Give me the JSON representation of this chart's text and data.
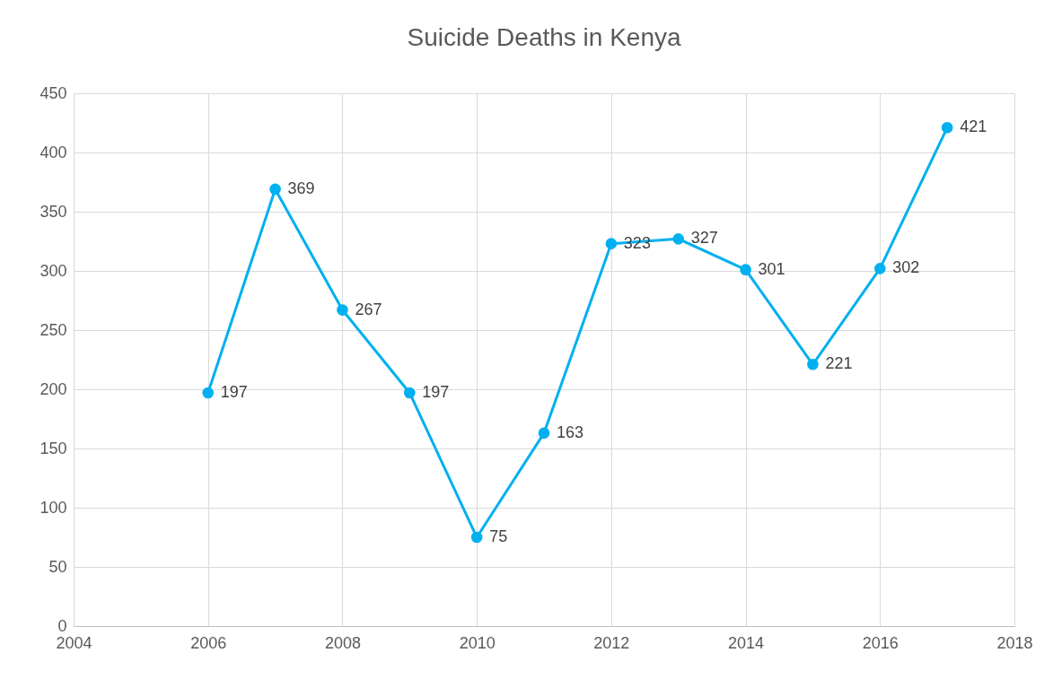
{
  "chart_data": {
    "type": "line",
    "title": "Suicide Deaths in Kenya",
    "x": [
      2006,
      2007,
      2008,
      2009,
      2010,
      2011,
      2012,
      2013,
      2014,
      2015,
      2016,
      2017
    ],
    "series": [
      {
        "color": "#00b0f0",
        "values": [
          197,
          369,
          267,
          197,
          75,
          163,
          323,
          327,
          301,
          221,
          302,
          421
        ]
      }
    ],
    "xlim": [
      2004,
      2018
    ],
    "xticks": [
      2004,
      2006,
      2008,
      2010,
      2012,
      2014,
      2016,
      2018
    ],
    "ylim": [
      0,
      450
    ],
    "yticks": [
      0,
      50,
      100,
      150,
      200,
      250,
      300,
      350,
      400,
      450
    ],
    "grid": true,
    "marker": "circle",
    "line_style": "solid",
    "data_labels": true
  }
}
